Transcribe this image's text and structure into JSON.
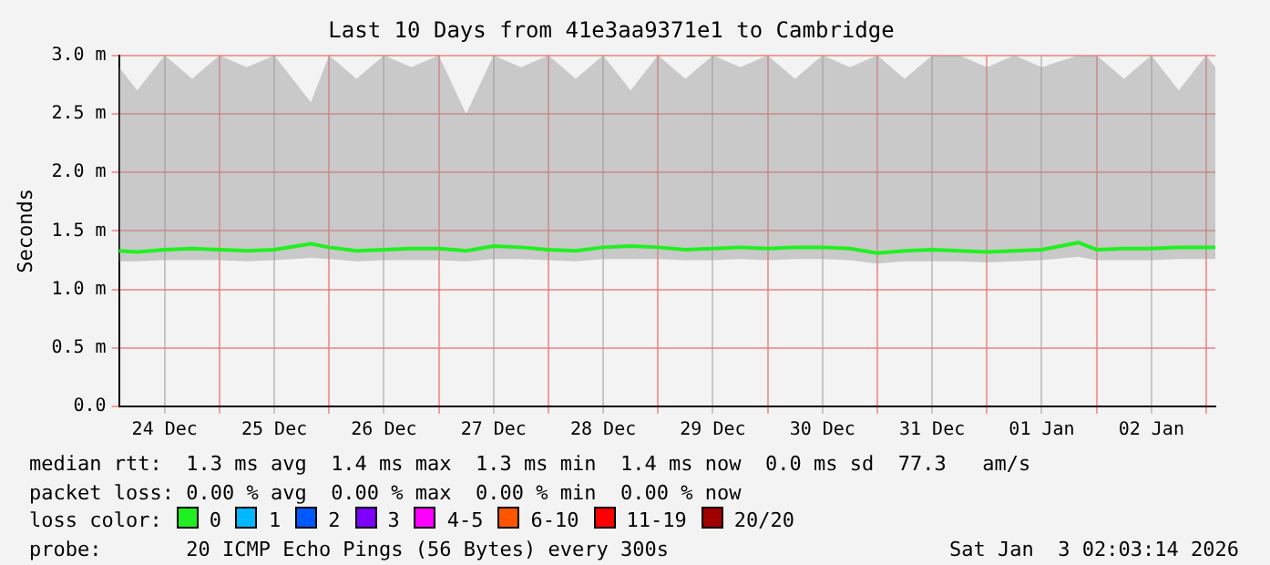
{
  "chart_data": {
    "type": "line",
    "title": "Last 10 Days from 41e3aa9371e1 to Cambridge",
    "ylabel": "Seconds",
    "legend_title": "loss color:",
    "x": [
      "2025-12-24T02:00",
      "2025-12-24T06:00",
      "2025-12-24T12:00",
      "2025-12-24T18:00",
      "2025-12-25T00:00",
      "2025-12-25T06:00",
      "2025-12-25T12:00",
      "2025-12-25T20:00",
      "2025-12-26T00:00",
      "2025-12-26T06:00",
      "2025-12-26T12:00",
      "2025-12-26T18:00",
      "2025-12-27T00:00",
      "2025-12-27T06:00",
      "2025-12-27T12:00",
      "2025-12-27T18:00",
      "2025-12-28T00:00",
      "2025-12-28T06:00",
      "2025-12-28T12:00",
      "2025-12-28T18:00",
      "2025-12-29T00:00",
      "2025-12-29T06:00",
      "2025-12-29T12:00",
      "2025-12-29T18:00",
      "2025-12-30T00:00",
      "2025-12-30T06:00",
      "2025-12-30T12:00",
      "2025-12-30T18:00",
      "2025-12-31T00:00",
      "2025-12-31T06:00",
      "2025-12-31T12:00",
      "2025-12-31T18:00",
      "2026-01-01T00:00",
      "2026-01-01T06:00",
      "2026-01-01T12:00",
      "2026-01-01T20:00",
      "2026-01-02T00:00",
      "2026-01-02T06:00",
      "2026-01-02T12:00",
      "2026-01-02T18:00",
      "2026-01-03T00:00",
      "2026-01-03T02:00"
    ],
    "series": [
      {
        "name": "0",
        "color": "#20f020",
        "values": [
          1.33,
          1.32,
          1.34,
          1.35,
          1.34,
          1.33,
          1.34,
          1.39,
          1.36,
          1.33,
          1.34,
          1.35,
          1.35,
          1.33,
          1.37,
          1.36,
          1.34,
          1.33,
          1.36,
          1.37,
          1.36,
          1.34,
          1.35,
          1.36,
          1.35,
          1.36,
          1.36,
          1.35,
          1.31,
          1.33,
          1.34,
          1.33,
          1.32,
          1.33,
          1.34,
          1.4,
          1.34,
          1.35,
          1.35,
          1.36,
          1.36,
          1.36
        ],
        "lower": [
          1.24,
          1.24,
          1.25,
          1.25,
          1.25,
          1.24,
          1.25,
          1.27,
          1.26,
          1.24,
          1.25,
          1.25,
          1.25,
          1.24,
          1.26,
          1.26,
          1.25,
          1.24,
          1.26,
          1.26,
          1.26,
          1.25,
          1.25,
          1.26,
          1.25,
          1.26,
          1.26,
          1.25,
          1.22,
          1.24,
          1.24,
          1.24,
          1.23,
          1.24,
          1.25,
          1.28,
          1.25,
          1.25,
          1.25,
          1.26,
          1.26,
          1.26
        ],
        "upper": [
          2.9,
          2.7,
          3.0,
          2.8,
          3.0,
          2.9,
          3.0,
          2.6,
          3.0,
          2.8,
          3.0,
          2.9,
          3.0,
          2.5,
          3.0,
          2.9,
          3.0,
          2.8,
          3.0,
          2.7,
          3.0,
          2.8,
          3.0,
          2.9,
          3.0,
          2.8,
          3.0,
          2.9,
          3.0,
          2.8,
          3.0,
          3.0,
          2.9,
          3.0,
          2.9,
          3.0,
          3.0,
          2.8,
          3.0,
          2.7,
          3.0,
          2.9
        ]
      },
      {
        "name": "1",
        "color": "#00b8ff",
        "values": [
          null,
          null,
          null,
          null,
          null,
          null,
          null,
          null,
          null,
          null,
          null,
          null,
          null,
          null,
          null,
          null,
          null,
          null,
          null,
          null,
          null,
          null,
          null,
          null,
          null,
          null,
          null,
          null,
          null,
          null,
          null,
          null,
          null,
          null,
          null,
          null,
          null,
          null,
          null,
          null,
          null,
          null
        ]
      },
      {
        "name": "2",
        "color": "#0059ff",
        "values": [
          null,
          null,
          null,
          null,
          null,
          null,
          null,
          null,
          null,
          null,
          null,
          null,
          null,
          null,
          null,
          null,
          null,
          null,
          null,
          null,
          null,
          null,
          null,
          null,
          null,
          null,
          null,
          null,
          null,
          null,
          null,
          null,
          null,
          null,
          null,
          null,
          null,
          null,
          null,
          null,
          null,
          null
        ]
      },
      {
        "name": "3",
        "color": "#7e00ff",
        "values": [
          null,
          null,
          null,
          null,
          null,
          null,
          null,
          null,
          null,
          null,
          null,
          null,
          null,
          null,
          null,
          null,
          null,
          null,
          null,
          null,
          null,
          null,
          null,
          null,
          null,
          null,
          null,
          null,
          null,
          null,
          null,
          null,
          null,
          null,
          null,
          null,
          null,
          null,
          null,
          null,
          null,
          null
        ]
      },
      {
        "name": "4-5",
        "color": "#ff00ff",
        "values": [
          null,
          null,
          null,
          null,
          null,
          null,
          null,
          null,
          null,
          null,
          null,
          null,
          null,
          null,
          null,
          null,
          null,
          null,
          null,
          null,
          null,
          null,
          null,
          null,
          null,
          null,
          null,
          null,
          null,
          null,
          null,
          null,
          null,
          null,
          null,
          null,
          null,
          null,
          null,
          null,
          null,
          null
        ]
      },
      {
        "name": "6-10",
        "color": "#ff5500",
        "values": [
          null,
          null,
          null,
          null,
          null,
          null,
          null,
          null,
          null,
          null,
          null,
          null,
          null,
          null,
          null,
          null,
          null,
          null,
          null,
          null,
          null,
          null,
          null,
          null,
          null,
          null,
          null,
          null,
          null,
          null,
          null,
          null,
          null,
          null,
          null,
          null,
          null,
          null,
          null,
          null,
          null,
          null
        ]
      },
      {
        "name": "11-19",
        "color": "#ff0000",
        "values": [
          null,
          null,
          null,
          null,
          null,
          null,
          null,
          null,
          null,
          null,
          null,
          null,
          null,
          null,
          null,
          null,
          null,
          null,
          null,
          null,
          null,
          null,
          null,
          null,
          null,
          null,
          null,
          null,
          null,
          null,
          null,
          null,
          null,
          null,
          null,
          null,
          null,
          null,
          null,
          null,
          null,
          null
        ]
      },
      {
        "name": "20/20",
        "color": "#a10000",
        "values": [
          null,
          null,
          null,
          null,
          null,
          null,
          null,
          null,
          null,
          null,
          null,
          null,
          null,
          null,
          null,
          null,
          null,
          null,
          null,
          null,
          null,
          null,
          null,
          null,
          null,
          null,
          null,
          null,
          null,
          null,
          null,
          null,
          null,
          null,
          null,
          null,
          null,
          null,
          null,
          null,
          null,
          null
        ]
      }
    ],
    "xlim": [
      "2025-12-24T02:00",
      "2026-01-03T02:00"
    ],
    "xticks": [
      {
        "value": "2025-12-24T12:00",
        "label": "24 Dec"
      },
      {
        "value": "2025-12-25T00:00",
        "label": null
      },
      {
        "value": "2025-12-25T12:00",
        "label": "25 Dec"
      },
      {
        "value": "2025-12-26T00:00",
        "label": null
      },
      {
        "value": "2025-12-26T12:00",
        "label": "26 Dec"
      },
      {
        "value": "2025-12-27T00:00",
        "label": null
      },
      {
        "value": "2025-12-27T12:00",
        "label": "27 Dec"
      },
      {
        "value": "2025-12-28T00:00",
        "label": null
      },
      {
        "value": "2025-12-28T12:00",
        "label": "28 Dec"
      },
      {
        "value": "2025-12-29T00:00",
        "label": null
      },
      {
        "value": "2025-12-29T12:00",
        "label": "29 Dec"
      },
      {
        "value": "2025-12-30T00:00",
        "label": null
      },
      {
        "value": "2025-12-30T12:00",
        "label": "30 Dec"
      },
      {
        "value": "2025-12-31T00:00",
        "label": null
      },
      {
        "value": "2025-12-31T12:00",
        "label": "31 Dec"
      },
      {
        "value": "2026-01-01T00:00",
        "label": null
      },
      {
        "value": "2026-01-01T12:00",
        "label": "01 Jan"
      },
      {
        "value": "2026-01-02T00:00",
        "label": null
      },
      {
        "value": "2026-01-02T12:00",
        "label": "02 Jan"
      },
      {
        "value": "2026-01-03T00:00",
        "label": null
      }
    ],
    "ylim": [
      0,
      3
    ],
    "yticks": [
      {
        "value": 0,
        "label": "0.0"
      },
      {
        "value": 0.5,
        "label": "0.5 m"
      },
      {
        "value": 1,
        "label": "1.0 m"
      },
      {
        "value": 1.5,
        "label": "1.5 m"
      },
      {
        "value": 2,
        "label": "2.0 m"
      },
      {
        "value": 2.5,
        "label": "2.5 m"
      },
      {
        "value": 3,
        "label": "3.0 m"
      }
    ],
    "grid": true,
    "legend": "bottom",
    "marker": "none",
    "line_style": "solid",
    "annotations": [
      "median rtt:  1.3 ms avg  1.4 ms max  1.3 ms min  1.4 ms now  0.0 ms sd  77.3   am/s",
      "packet loss: 0.00 % avg  0.00 % max  0.00 % min  0.00 % now",
      "probe:       20 ICMP Echo Pings (56 Bytes) every 300s",
      "Sat Jan  3 02:03:14 2026"
    ]
  }
}
